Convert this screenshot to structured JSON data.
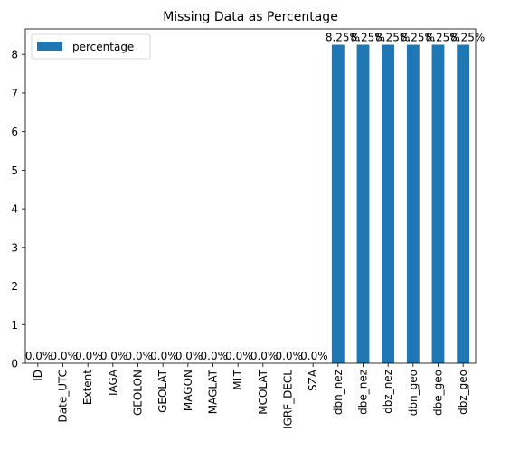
{
  "chart_data": {
    "type": "bar",
    "title": "Missing Data as Percentage",
    "xlabel": "",
    "ylabel": "",
    "categories": [
      "ID",
      "Date_UTC",
      "Extent",
      "IAGA",
      "GEOLON",
      "GEOLAT",
      "MAGON",
      "MAGLAT",
      "MLT",
      "MCOLAT",
      "IGRF_DECL",
      "SZA",
      "dbn_nez",
      "dbe_nez",
      "dbz_nez",
      "dbn_geo",
      "dbe_geo",
      "dbz_geo"
    ],
    "series": [
      {
        "name": "percentage",
        "values": [
          0.0,
          0.0,
          0.0,
          0.0,
          0.0,
          0.0,
          0.0,
          0.0,
          0.0,
          0.0,
          0.0,
          0.0,
          8.25,
          8.25,
          8.25,
          8.25,
          8.25,
          8.25
        ]
      }
    ],
    "data_labels": [
      "0.0%",
      "0.0%",
      "0.0%",
      "0.0%",
      "0.0%",
      "0.0%",
      "0.0%",
      "0.0%",
      "0.0%",
      "0.0%",
      "0.0%",
      "0.0%",
      "8.25%",
      "8.25%",
      "8.25%",
      "8.25%",
      "8.25%",
      "8.25%"
    ],
    "ylim": [
      0,
      8.66
    ],
    "yticks": [
      "0",
      "1",
      "2",
      "3",
      "4",
      "5",
      "6",
      "7",
      "8"
    ],
    "legend_position": "top-left",
    "grid": false,
    "colors": {
      "bar": "#1f77b4"
    }
  }
}
